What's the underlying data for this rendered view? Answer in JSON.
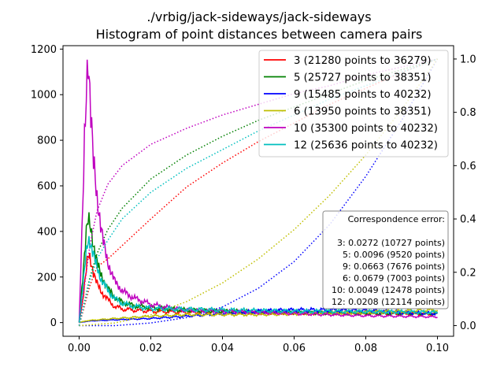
{
  "chart_data": {
    "type": "line",
    "title": "./vrbig/jack-sideways/jack-sideways",
    "subtitle": "Histogram of point distances between camera pairs",
    "xlabel": "",
    "ylabel": "",
    "y2label": "",
    "xlim": [
      -0.0045,
      0.1045
    ],
    "ylim": [
      -60,
      1215
    ],
    "y2lim": [
      -0.04,
      1.05
    ],
    "x_ticks": [
      "0.00",
      "0.02",
      "0.04",
      "0.06",
      "0.08",
      "0.10"
    ],
    "x_tick_values": [
      0.0,
      0.02,
      0.04,
      0.06,
      0.08,
      0.1
    ],
    "y_ticks": [
      "0",
      "200",
      "400",
      "600",
      "800",
      "1000",
      "1200"
    ],
    "y_tick_values": [
      0,
      200,
      400,
      600,
      800,
      1000,
      1200
    ],
    "y2_ticks": [
      "0.0",
      "0.2",
      "0.4",
      "0.6",
      "0.8",
      "1.0"
    ],
    "y2_tick_values": [
      0.0,
      0.2,
      0.4,
      0.6,
      0.8,
      1.0
    ],
    "grid": false,
    "legend_position": "top-right",
    "series": [
      {
        "name": "3 (21280 points to 36279)",
        "color": "#ff0000",
        "hist": [
          [
            0,
            0
          ],
          [
            0.001,
            100
          ],
          [
            0.002,
            230
          ],
          [
            0.0025,
            295
          ],
          [
            0.003,
            285
          ],
          [
            0.004,
            220
          ],
          [
            0.005,
            170
          ],
          [
            0.006,
            140
          ],
          [
            0.008,
            100
          ],
          [
            0.01,
            70
          ],
          [
            0.012,
            60
          ],
          [
            0.015,
            55
          ],
          [
            0.02,
            50
          ],
          [
            0.03,
            45
          ],
          [
            0.04,
            45
          ],
          [
            0.06,
            42
          ],
          [
            0.08,
            40
          ],
          [
            0.1,
            38
          ]
        ],
        "cdf": [
          [
            0,
            0
          ],
          [
            0.003,
            0.15
          ],
          [
            0.005,
            0.22
          ],
          [
            0.008,
            0.25
          ],
          [
            0.012,
            0.3
          ],
          [
            0.02,
            0.4
          ],
          [
            0.03,
            0.52
          ],
          [
            0.04,
            0.61
          ],
          [
            0.05,
            0.69
          ],
          [
            0.06,
            0.76
          ],
          [
            0.07,
            0.83
          ],
          [
            0.08,
            0.89
          ],
          [
            0.09,
            0.95
          ],
          [
            0.1,
            1.0
          ]
        ]
      },
      {
        "name": "5 (25727 points to 38351)",
        "color": "#008000",
        "hist": [
          [
            0,
            0
          ],
          [
            0.001,
            200
          ],
          [
            0.002,
            400
          ],
          [
            0.0025,
            455
          ],
          [
            0.003,
            430
          ],
          [
            0.004,
            340
          ],
          [
            0.005,
            270
          ],
          [
            0.006,
            210
          ],
          [
            0.008,
            150
          ],
          [
            0.01,
            110
          ],
          [
            0.012,
            90
          ],
          [
            0.015,
            75
          ],
          [
            0.02,
            65
          ],
          [
            0.03,
            55
          ],
          [
            0.04,
            50
          ],
          [
            0.06,
            45
          ],
          [
            0.08,
            40
          ],
          [
            0.1,
            40
          ]
        ],
        "cdf": [
          [
            0,
            0
          ],
          [
            0.003,
            0.18
          ],
          [
            0.005,
            0.27
          ],
          [
            0.008,
            0.36
          ],
          [
            0.012,
            0.44
          ],
          [
            0.02,
            0.55
          ],
          [
            0.03,
            0.64
          ],
          [
            0.04,
            0.71
          ],
          [
            0.05,
            0.77
          ],
          [
            0.06,
            0.82
          ],
          [
            0.07,
            0.87
          ],
          [
            0.08,
            0.92
          ],
          [
            0.09,
            0.96
          ],
          [
            0.1,
            1.0
          ]
        ]
      },
      {
        "name": "9 (15485 points to 40232)",
        "color": "#0000ff",
        "hist": [
          [
            0,
            0
          ],
          [
            0.002,
            5
          ],
          [
            0.004,
            8
          ],
          [
            0.01,
            12
          ],
          [
            0.02,
            18
          ],
          [
            0.03,
            28
          ],
          [
            0.04,
            40
          ],
          [
            0.05,
            50
          ],
          [
            0.06,
            55
          ],
          [
            0.07,
            55
          ],
          [
            0.08,
            52
          ],
          [
            0.09,
            45
          ],
          [
            0.1,
            40
          ]
        ],
        "cdf": [
          [
            0,
            0
          ],
          [
            0.01,
            0.0
          ],
          [
            0.02,
            0.01
          ],
          [
            0.03,
            0.03
          ],
          [
            0.04,
            0.07
          ],
          [
            0.05,
            0.14
          ],
          [
            0.06,
            0.24
          ],
          [
            0.07,
            0.38
          ],
          [
            0.08,
            0.56
          ],
          [
            0.09,
            0.77
          ],
          [
            0.1,
            1.0
          ]
        ]
      },
      {
        "name": "6 (13950 points to 38351)",
        "color": "#bfbf00",
        "hist": [
          [
            0,
            0
          ],
          [
            0.002,
            8
          ],
          [
            0.005,
            12
          ],
          [
            0.01,
            18
          ],
          [
            0.02,
            28
          ],
          [
            0.03,
            35
          ],
          [
            0.04,
            35
          ],
          [
            0.05,
            35
          ],
          [
            0.06,
            38
          ],
          [
            0.07,
            42
          ],
          [
            0.08,
            45
          ],
          [
            0.09,
            50
          ],
          [
            0.1,
            55
          ]
        ],
        "cdf": [
          [
            0,
            0
          ],
          [
            0.01,
            0.01
          ],
          [
            0.02,
            0.04
          ],
          [
            0.03,
            0.09
          ],
          [
            0.04,
            0.16
          ],
          [
            0.05,
            0.25
          ],
          [
            0.06,
            0.36
          ],
          [
            0.07,
            0.49
          ],
          [
            0.08,
            0.64
          ],
          [
            0.09,
            0.81
          ],
          [
            0.1,
            1.0
          ]
        ]
      },
      {
        "name": "10 (35300 points to 40232)",
        "color": "#bf00bf",
        "hist": [
          [
            0,
            0
          ],
          [
            0.001,
            500
          ],
          [
            0.0015,
            800
          ],
          [
            0.002,
            1000
          ],
          [
            0.0025,
            1155
          ],
          [
            0.003,
            1000
          ],
          [
            0.004,
            720
          ],
          [
            0.005,
            540
          ],
          [
            0.006,
            430
          ],
          [
            0.007,
            340
          ],
          [
            0.008,
            260
          ],
          [
            0.01,
            180
          ],
          [
            0.012,
            140
          ],
          [
            0.015,
            110
          ],
          [
            0.02,
            80
          ],
          [
            0.025,
            65
          ],
          [
            0.03,
            55
          ],
          [
            0.04,
            50
          ],
          [
            0.06,
            40
          ],
          [
            0.08,
            30
          ],
          [
            0.1,
            25
          ]
        ],
        "cdf": [
          [
            0,
            0
          ],
          [
            0.002,
            0.2
          ],
          [
            0.003,
            0.3
          ],
          [
            0.005,
            0.43
          ],
          [
            0.008,
            0.53
          ],
          [
            0.012,
            0.6
          ],
          [
            0.02,
            0.68
          ],
          [
            0.03,
            0.74
          ],
          [
            0.04,
            0.79
          ],
          [
            0.05,
            0.83
          ],
          [
            0.06,
            0.87
          ],
          [
            0.07,
            0.9
          ],
          [
            0.08,
            0.94
          ],
          [
            0.09,
            0.97
          ],
          [
            0.1,
            1.0
          ]
        ]
      },
      {
        "name": "12 (25636 points to 40232)",
        "color": "#00bfbf",
        "hist": [
          [
            0,
            0
          ],
          [
            0.001,
            150
          ],
          [
            0.002,
            310
          ],
          [
            0.0025,
            360
          ],
          [
            0.003,
            355
          ],
          [
            0.004,
            300
          ],
          [
            0.005,
            240
          ],
          [
            0.006,
            195
          ],
          [
            0.008,
            140
          ],
          [
            0.01,
            105
          ],
          [
            0.012,
            85
          ],
          [
            0.015,
            72
          ],
          [
            0.02,
            62
          ],
          [
            0.03,
            58
          ],
          [
            0.04,
            55
          ],
          [
            0.06,
            50
          ],
          [
            0.08,
            48
          ],
          [
            0.1,
            45
          ]
        ],
        "cdf": [
          [
            0,
            0
          ],
          [
            0.003,
            0.17
          ],
          [
            0.005,
            0.25
          ],
          [
            0.008,
            0.32
          ],
          [
            0.012,
            0.4
          ],
          [
            0.02,
            0.5
          ],
          [
            0.03,
            0.59
          ],
          [
            0.04,
            0.66
          ],
          [
            0.05,
            0.73
          ],
          [
            0.06,
            0.79
          ],
          [
            0.07,
            0.85
          ],
          [
            0.08,
            0.9
          ],
          [
            0.09,
            0.95
          ],
          [
            0.1,
            1.0
          ]
        ]
      }
    ],
    "annotation": {
      "title": "Correspondence error:",
      "lines": [
        "3: 0.0272 (10727 points)",
        "5: 0.0096 (9520 points)",
        "9: 0.0663 (7676 points)",
        "6: 0.0679 (7003 points)",
        "10: 0.0049 (12478 points)",
        "12: 0.0208 (12114 points)"
      ]
    }
  }
}
